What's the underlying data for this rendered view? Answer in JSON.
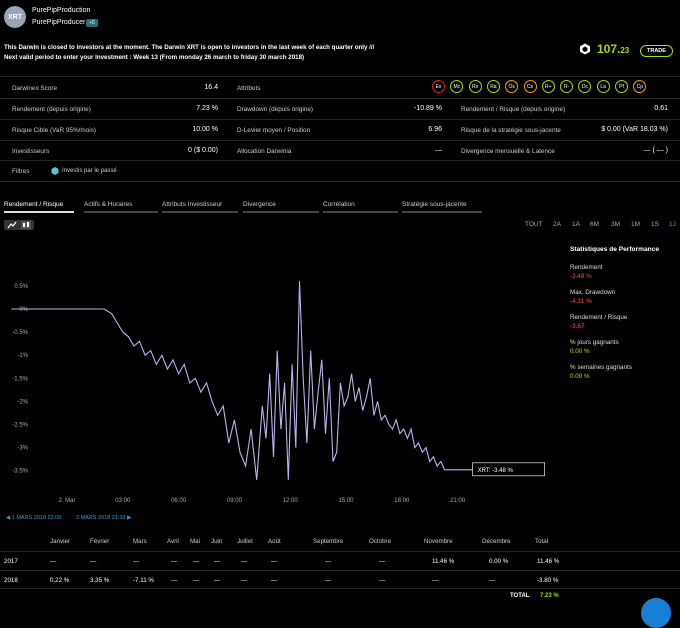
{
  "header": {
    "avatar_text": "XRT",
    "production_name": "PurePipProduction",
    "producer_name": "PurePipProducer",
    "producer_badge": "+5",
    "notice_line1": "This Darwin is closed to investors at the moment. The Darwin XRT is open to investors in the last week of each quarter only ///",
    "notice_line2": "Next valid period to enter your Investment : Week 13 (From monday 26 march to friday 30 march 2018)",
    "price_main": "107.",
    "price_decimals": "23",
    "trade_label": "TRADE"
  },
  "stats": {
    "darwinex_score_label": "Darwinex Score",
    "darwinex_score_value": "16.4",
    "attributes_label": "Attributs",
    "rendement_label": "Rendement (depuis origine)",
    "rendement_value": "7.23 %",
    "drawdown_label": "Drawdown (depuis origine)",
    "drawdown_value": "-10.89 %",
    "rr_label": "Rendement / Risque (depuis origine)",
    "rr_value": "0.61",
    "risque_label": "Risque Cible (VaR 95%/mois)",
    "risque_value": "10.00 %",
    "levier_label": "D-Levier moyen / Position",
    "levier_value": "6.96",
    "strategie_label": "Risque de la stratégie sous-jacente",
    "strategie_value": "$ 0.00 (VaR 18.03 %)",
    "investisseurs_label": "Investisseurs",
    "investisseurs_value": "0 ($ 0.00)",
    "allocation_label": "Allocation Darwinia",
    "allocation_value": "—",
    "divergence_label": "Divergence mensuelle & Latence",
    "divergence_value": "— ( — )",
    "filtres_label": "Filtres",
    "filtre_item": "Investis par le passé"
  },
  "attributes": [
    {
      "label": "Ex",
      "color": "#e22222"
    },
    {
      "label": "Mc",
      "color": "#9fe00c"
    },
    {
      "label": "Rs",
      "color": "#9fe00c"
    },
    {
      "label": "Ra",
      "color": "#9fe00c"
    },
    {
      "label": "Os",
      "color": "#f0a500"
    },
    {
      "label": "Cs",
      "color": "#f0a500"
    },
    {
      "label": "R+",
      "color": "#9fe00c"
    },
    {
      "label": "R-",
      "color": "#9fe00c"
    },
    {
      "label": "Dc",
      "color": "#9fe00c"
    },
    {
      "label": "La",
      "color": "#9fe00c"
    },
    {
      "label": "Pf",
      "color": "#9fe00c"
    },
    {
      "label": "Cp",
      "color": "#f0a500"
    }
  ],
  "tabs": [
    "Rendement / Risque",
    "Actifs & Horaires",
    "Attributs Investisseur",
    "Divergence",
    "Corrélation",
    "Stratégie sous-jacente"
  ],
  "ranges": [
    "TOUT",
    "2A",
    "1A",
    "6M",
    "3M",
    "1M",
    "1S",
    "1J"
  ],
  "chart_data": {
    "type": "line",
    "title": "",
    "xlabel": "",
    "ylabel": "",
    "x_ticks": [
      "2. Mar",
      "03:00",
      "06:00",
      "09:00",
      "12:00",
      "15:00",
      "18:00",
      "21:00"
    ],
    "y_ticks": [
      "0.5%",
      "0%",
      "-0.5%",
      "-1%",
      "-1.5%",
      "-2%",
      "-2.5%",
      "-3%",
      "-3.5%"
    ],
    "ylim": [
      -3.8,
      0.8
    ],
    "series": [
      {
        "name": "XRT",
        "color": "#b9b4ea",
        "x_hours": [
          -3.0,
          -2.5,
          2.0,
          2.4,
          2.7,
          3.0,
          3.3,
          3.6,
          3.9,
          4.2,
          4.5,
          4.8,
          5.1,
          5.4,
          5.7,
          6.0,
          6.3,
          6.6,
          6.9,
          7.2,
          7.5,
          7.8,
          8.1,
          8.4,
          8.7,
          9.0,
          9.3,
          9.6,
          9.9,
          10.2,
          10.5,
          10.7,
          10.9,
          11.1,
          11.3,
          11.5,
          11.7,
          11.9,
          12.1,
          12.3,
          12.5,
          12.7,
          12.9,
          13.1,
          13.3,
          13.5,
          13.7,
          13.9,
          14.1,
          14.3,
          14.5,
          14.7,
          14.9,
          15.1,
          15.3,
          15.5,
          15.7,
          15.9,
          16.1,
          16.3,
          16.5,
          16.7,
          16.9,
          17.1,
          17.3,
          17.5,
          17.7,
          17.9,
          18.1,
          18.3,
          18.5,
          18.7,
          18.9,
          19.1,
          19.3,
          19.5,
          19.7,
          19.9,
          20.1,
          20.3,
          20.5,
          20.7,
          21.0,
          21.5,
          22.0
        ],
        "values": [
          0.0,
          0.0,
          0.0,
          -0.1,
          -0.3,
          -0.5,
          -0.6,
          -0.8,
          -0.7,
          -1.0,
          -0.9,
          -1.2,
          -1.0,
          -1.3,
          -1.1,
          -1.4,
          -1.2,
          -1.6,
          -1.5,
          -1.8,
          -1.6,
          -2.0,
          -2.3,
          -2.1,
          -2.9,
          -2.4,
          -3.1,
          -3.4,
          -2.6,
          -3.7,
          -2.1,
          -2.8,
          -1.4,
          -3.2,
          -0.9,
          -2.6,
          -1.6,
          -3.7,
          -1.2,
          -3.0,
          0.6,
          -1.5,
          -2.9,
          -0.9,
          -2.6,
          -1.8,
          -1.1,
          -2.7,
          -1.5,
          -3.3,
          -3.1,
          -1.6,
          -2.1,
          -1.9,
          -1.4,
          -2.0,
          -1.7,
          -2.2,
          -1.9,
          -1.5,
          -2.3,
          -2.0,
          -2.4,
          -2.3,
          -2.5,
          -2.6,
          -2.4,
          -2.7,
          -2.6,
          -2.8,
          -2.6,
          -3.0,
          -2.9,
          -3.1,
          -3.0,
          -3.3,
          -3.2,
          -3.4,
          -3.3,
          -3.48,
          -3.48,
          -3.48,
          -3.48,
          -3.48,
          -3.48
        ],
        "tooltip": "XRT: -3.48 %"
      }
    ],
    "grid": false
  },
  "perf": {
    "title": "Statistiques de Performance",
    "items": [
      {
        "label": "Rendement",
        "value": "-3.48 %",
        "color": "#ff4d4d"
      },
      {
        "label": "Max. Drawdown",
        "value": "-4.31 %",
        "color": "#ff4d4d"
      },
      {
        "label": "Rendement / Risque",
        "value": "-3.67",
        "color": "#ff4d4d"
      },
      {
        "label": "% jours gagnants",
        "value": "0.00 %",
        "color": "#9fe00c"
      },
      {
        "label": "% semaines gagnants",
        "value": "0.00 %",
        "color": "#9fe00c"
      }
    ]
  },
  "dates": {
    "start": "1 MARS 2018 22:00",
    "end": "2 MARS 2018 21:39"
  },
  "monthly": {
    "headers": [
      "Janvier",
      "Février",
      "Mars",
      "Avril",
      "Mai",
      "Juin",
      "Juillet",
      "Août",
      "Septembre",
      "Octobre",
      "Novembre",
      "Décembre",
      "Total"
    ],
    "rows": [
      {
        "year": "2017",
        "cells": [
          "—",
          "—",
          "—",
          "—",
          "—",
          "—",
          "—",
          "—",
          "—",
          "—",
          "11.46 %",
          "0.00 %",
          "11.46 %"
        ],
        "colors": [
          "",
          "",
          "",
          "",
          "",
          "",
          "",
          "",
          "",
          "",
          "g",
          "g",
          "g"
        ]
      },
      {
        "year": "2018",
        "cells": [
          "0.22 %",
          "3.35 %",
          "-7.11 %",
          "—",
          "—",
          "—",
          "—",
          "—",
          "—",
          "—",
          "—",
          "—",
          "-3.80 %"
        ],
        "colors": [
          "g",
          "g",
          "r",
          "",
          "",
          "",
          "",
          "",
          "",
          "",
          "",
          "",
          "r"
        ]
      }
    ],
    "total_label": "TOTAL",
    "total_value": "7.23 %"
  }
}
